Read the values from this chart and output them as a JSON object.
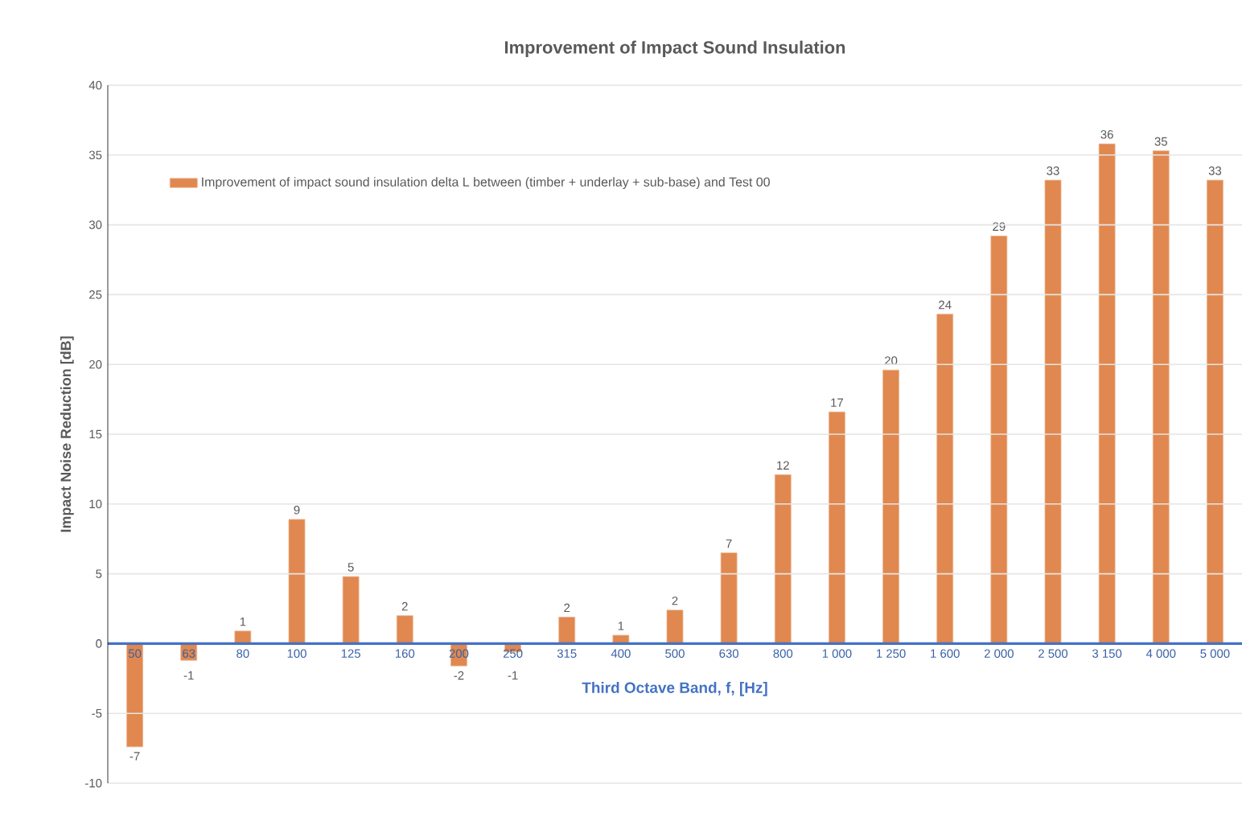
{
  "chart_data": {
    "type": "bar",
    "title": "Improvement of Impact Sound Insulation",
    "xlabel": "Third Octave Band, f, [Hz]",
    "ylabel": "Impact Noise Reduction [dB]",
    "categories": [
      "50",
      "63",
      "80",
      "100",
      "125",
      "160",
      "200",
      "250",
      "315",
      "400",
      "500",
      "630",
      "800",
      "1 000",
      "1 250",
      "1 600",
      "2 000",
      "2 500",
      "3 150",
      "4 000",
      "5 000"
    ],
    "series": [
      {
        "name": "Improvement of impact sound insulation delta L between (timber + underlay + sub-base) and Test 00",
        "color": "#e0884f",
        "values": [
          -7.4,
          -1.2,
          0.9,
          8.9,
          4.8,
          2.0,
          -1.6,
          -0.6,
          1.9,
          0.6,
          2.4,
          6.5,
          12.1,
          16.6,
          19.6,
          23.6,
          29.2,
          33.2,
          35.8,
          35.3,
          33.2
        ],
        "value_labels": [
          "-7",
          "-1",
          "1",
          "9",
          "5",
          "2",
          "-2",
          "-1",
          "2",
          "1",
          "2",
          "7",
          "12",
          "17",
          "20",
          "24",
          "29",
          "33",
          "36",
          "35",
          "33"
        ]
      }
    ],
    "ylim": [
      -10,
      40
    ],
    "yticks": [
      -10,
      -5,
      0,
      5,
      10,
      15,
      20,
      25,
      30,
      35,
      40
    ],
    "grid": "y",
    "legend": "top left"
  }
}
